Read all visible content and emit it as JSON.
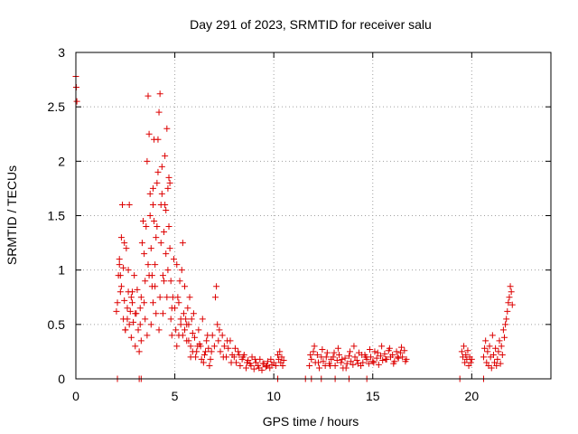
{
  "chart_data": {
    "type": "scatter",
    "title": "Day 291 of 2023, SRMTID for receiver salu",
    "xlabel": "GPS time / hours",
    "ylabel": "SRMTID / TECUs",
    "xlim": [
      0,
      24
    ],
    "ylim": [
      0,
      3
    ],
    "xticks": [
      0,
      5,
      10,
      15,
      20
    ],
    "yticks": [
      0,
      0.5,
      1,
      1.5,
      2,
      2.5,
      3
    ],
    "xtick_labels": [
      "0",
      "5",
      "10",
      "15",
      "20"
    ],
    "ytick_labels": [
      "0",
      "0.5",
      "1",
      "1.5",
      "2",
      "2.5",
      "3"
    ],
    "grid": true,
    "marker": "+",
    "series": [
      {
        "name": "SRMTID",
        "color": "#dd0000",
        "x": [
          0.0,
          0.02,
          0.05,
          2.05,
          2.1,
          2.15,
          2.2,
          2.25,
          2.3,
          2.35,
          2.4,
          2.45,
          2.5,
          2.55,
          2.6,
          2.65,
          2.7,
          2.75,
          2.8,
          2.85,
          2.9,
          2.95,
          3.0,
          3.05,
          3.1,
          3.15,
          3.2,
          3.25,
          3.3,
          3.35,
          3.4,
          3.45,
          3.5,
          3.55,
          3.6,
          3.65,
          3.7,
          3.75,
          3.8,
          3.85,
          3.9,
          3.95,
          4.0,
          4.05,
          4.1,
          4.15,
          4.2,
          4.25,
          4.3,
          4.35,
          4.4,
          4.45,
          4.5,
          4.55,
          4.6,
          4.65,
          4.7,
          4.75,
          4.8,
          4.85,
          4.9,
          4.95,
          2.2,
          2.3,
          2.4,
          2.5,
          2.6,
          2.7,
          2.8,
          3.0,
          3.3,
          3.5,
          3.7,
          3.8,
          3.9,
          4.0,
          4.2,
          4.4,
          4.6,
          4.8,
          2.25,
          2.45,
          2.65,
          2.85,
          3.25,
          3.45,
          3.65,
          3.85,
          4.05,
          4.25,
          4.45,
          4.65,
          4.85,
          3.6,
          3.75,
          3.9,
          4.1,
          4.3,
          4.5,
          4.7,
          3.95,
          4.15,
          4.35,
          4.55,
          4.75,
          5.0,
          5.05,
          5.1,
          5.15,
          5.2,
          5.25,
          5.3,
          5.35,
          5.4,
          5.45,
          5.5,
          5.55,
          5.6,
          5.65,
          5.7,
          5.75,
          5.8,
          5.85,
          5.9,
          5.95,
          5.1,
          5.3,
          5.5,
          5.7,
          5.9,
          5.2,
          5.4,
          5.6,
          5.8,
          6.0,
          6.1,
          6.2,
          6.3,
          6.4,
          6.5,
          6.6,
          6.7,
          6.8,
          6.9,
          7.0,
          7.05,
          7.1,
          7.15,
          7.2,
          7.3,
          7.4,
          7.5,
          7.6,
          7.7,
          7.8,
          7.9,
          6.05,
          6.25,
          6.45,
          6.65,
          6.85,
          7.25,
          7.45,
          7.65,
          7.85,
          6.15,
          6.35,
          6.55,
          6.75,
          8.0,
          8.1,
          8.2,
          8.3,
          8.4,
          8.5,
          8.6,
          8.7,
          8.8,
          8.9,
          9.0,
          9.1,
          9.2,
          9.3,
          9.4,
          9.5,
          9.6,
          9.7,
          9.8,
          9.9,
          10.0,
          10.1,
          8.05,
          8.25,
          8.45,
          8.65,
          8.85,
          9.05,
          9.25,
          9.45,
          9.65,
          9.85,
          10.2,
          10.25,
          10.3,
          10.35,
          10.4,
          10.45,
          10.5,
          11.8,
          11.9,
          12.0,
          12.1,
          12.2,
          12.3,
          12.4,
          12.5,
          12.6,
          12.7,
          12.8,
          12.9,
          13.0,
          13.1,
          13.2,
          13.3,
          13.4,
          13.5,
          13.6,
          13.7,
          13.8,
          13.9,
          14.0,
          14.1,
          14.2,
          14.3,
          14.4,
          14.5,
          14.6,
          14.7,
          14.8,
          14.9,
          15.0,
          15.1,
          15.2,
          15.3,
          15.4,
          15.5,
          15.6,
          15.7,
          15.8,
          15.9,
          16.0,
          16.1,
          16.2,
          16.3,
          16.4,
          16.5,
          16.6,
          16.7,
          11.85,
          12.05,
          12.25,
          12.45,
          12.65,
          12.85,
          13.05,
          13.25,
          13.45,
          13.65,
          13.85,
          14.05,
          14.25,
          14.45,
          14.65,
          14.85,
          15.05,
          15.25,
          15.45,
          15.65,
          15.85,
          16.05,
          16.25,
          16.45,
          16.65,
          19.5,
          19.55,
          19.6,
          19.65,
          19.7,
          19.75,
          19.8,
          19.85,
          19.9,
          19.95,
          20.0,
          20.6,
          20.65,
          20.7,
          20.75,
          20.8,
          20.85,
          20.9,
          20.95,
          21.0,
          21.05,
          21.1,
          21.15,
          21.2,
          21.25,
          21.3,
          21.35,
          21.4,
          21.45,
          21.5,
          21.55,
          21.6,
          21.65,
          21.7,
          21.75,
          21.8,
          21.85,
          21.9,
          21.95,
          22.0,
          22.05,
          2.1,
          3.2,
          3.3,
          10.2,
          11.6,
          11.9,
          12.4,
          13.1,
          13.8,
          14.7,
          19.4,
          20.6
        ],
        "y": [
          2.78,
          2.68,
          2.55,
          0.62,
          0.7,
          0.95,
          1.05,
          0.8,
          1.3,
          1.6,
          1.02,
          0.72,
          0.45,
          1.2,
          0.55,
          0.8,
          0.5,
          0.62,
          0.38,
          0.7,
          0.52,
          0.95,
          0.3,
          0.6,
          0.82,
          0.45,
          0.25,
          0.5,
          0.75,
          1.25,
          1.45,
          1.15,
          0.9,
          1.4,
          2.0,
          2.6,
          2.25,
          1.7,
          1.2,
          0.85,
          1.6,
          1.45,
          1.05,
          1.3,
          1.8,
          2.2,
          2.45,
          2.62,
          1.6,
          1.95,
          0.95,
          1.35,
          2.05,
          1.15,
          2.3,
          1.75,
          1.85,
          1.2,
          0.9,
          0.65,
          0.75,
          1.1,
          1.1,
          0.85,
          0.55,
          0.45,
          0.65,
          1.6,
          0.75,
          0.6,
          0.35,
          0.55,
          0.95,
          0.5,
          0.7,
          0.85,
          0.45,
          0.6,
          0.75,
          0.55,
          0.95,
          1.25,
          1.0,
          0.8,
          0.65,
          0.7,
          1.05,
          0.95,
          0.6,
          0.75,
          0.9,
          1.0,
          0.4,
          0.4,
          1.5,
          1.75,
          1.4,
          1.25,
          1.6,
          1.4,
          2.2,
          1.9,
          1.7,
          1.55,
          1.8,
          0.65,
          0.45,
          1.05,
          0.75,
          0.4,
          0.9,
          0.5,
          1.0,
          1.25,
          0.6,
          0.85,
          0.55,
          0.35,
          0.65,
          0.5,
          0.75,
          0.3,
          0.55,
          0.42,
          0.6,
          0.3,
          0.55,
          0.45,
          0.35,
          0.25,
          0.7,
          0.4,
          0.5,
          0.2,
          0.38,
          0.25,
          0.45,
          0.3,
          0.55,
          0.22,
          0.35,
          0.28,
          0.18,
          0.4,
          0.3,
          0.75,
          0.85,
          0.5,
          0.35,
          0.25,
          0.4,
          0.3,
          0.2,
          0.28,
          0.35,
          0.22,
          0.2,
          0.32,
          0.15,
          0.4,
          0.25,
          0.45,
          0.2,
          0.35,
          0.15,
          0.3,
          0.18,
          0.25,
          0.12,
          0.2,
          0.15,
          0.25,
          0.12,
          0.18,
          0.22,
          0.1,
          0.17,
          0.14,
          0.2,
          0.09,
          0.15,
          0.12,
          0.18,
          0.08,
          0.14,
          0.11,
          0.16,
          0.1,
          0.13,
          0.15,
          0.12,
          0.28,
          0.22,
          0.2,
          0.15,
          0.12,
          0.18,
          0.1,
          0.14,
          0.12,
          0.18,
          0.22,
          0.18,
          0.25,
          0.15,
          0.2,
          0.12,
          0.17,
          0.12,
          0.18,
          0.25,
          0.15,
          0.22,
          0.1,
          0.2,
          0.16,
          0.12,
          0.24,
          0.14,
          0.18,
          0.2,
          0.12,
          0.17,
          0.22,
          0.15,
          0.1,
          0.19,
          0.14,
          0.21,
          0.16,
          0.13,
          0.2,
          0.17,
          0.24,
          0.12,
          0.15,
          0.22,
          0.18,
          0.14,
          0.2,
          0.16,
          0.25,
          0.19,
          0.13,
          0.21,
          0.17,
          0.23,
          0.18,
          0.26,
          0.2,
          0.22,
          0.16,
          0.25,
          0.19,
          0.24,
          0.2,
          0.26,
          0.18,
          0.22,
          0.3,
          0.15,
          0.27,
          0.2,
          0.12,
          0.24,
          0.28,
          0.18,
          0.1,
          0.25,
          0.3,
          0.14,
          0.22,
          0.2,
          0.27,
          0.15,
          0.24,
          0.3,
          0.18,
          0.28,
          0.14,
          0.2,
          0.29,
          0.16,
          0.25,
          0.2,
          0.3,
          0.15,
          0.22,
          0.18,
          0.26,
          0.12,
          0.2,
          0.15,
          0.18,
          0.2,
          0.28,
          0.35,
          0.15,
          0.25,
          0.12,
          0.3,
          0.2,
          0.1,
          0.4,
          0.22,
          0.15,
          0.28,
          0.12,
          0.18,
          0.25,
          0.35,
          0.14,
          0.3,
          0.22,
          0.45,
          0.38,
          0.5,
          0.55,
          0.62,
          0.7,
          0.75,
          0.85,
          0.8,
          0.68,
          0.0,
          0.0,
          0.0,
          0.0,
          0.0,
          0.0,
          0.0,
          0.0,
          0.0,
          0.0,
          0.0,
          0.0
        ]
      }
    ]
  }
}
